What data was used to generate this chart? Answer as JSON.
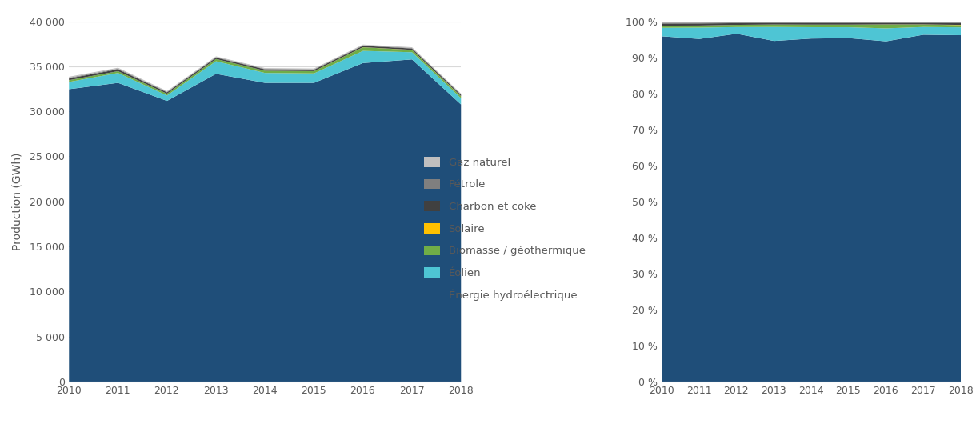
{
  "years": [
    2010,
    2011,
    2012,
    2013,
    2014,
    2015,
    2016,
    2017,
    2018
  ],
  "stack_order": [
    "Énergie hydroélectrique",
    "Éolien",
    "Biomasse / géothermique",
    "Solaire",
    "Charbon et coke",
    "Pétrole",
    "Gaz naturel"
  ],
  "legend_order": [
    "Gaz naturel",
    "Pétrole",
    "Charbon et coke",
    "Solaire",
    "Biomasse / géothermique",
    "Éolien",
    "Énergie hydroélectrique"
  ],
  "series": {
    "Gaz naturel": [
      100,
      100,
      80,
      80,
      80,
      80,
      80,
      80,
      80
    ],
    "Pétrole": [
      80,
      80,
      60,
      60,
      60,
      60,
      60,
      60,
      60
    ],
    "Charbon et coke": [
      200,
      200,
      150,
      150,
      150,
      150,
      150,
      150,
      150
    ],
    "Solaire": [
      0,
      0,
      0,
      0,
      0,
      5,
      10,
      15,
      20
    ],
    "Biomasse / géothermique": [
      200,
      200,
      200,
      250,
      250,
      250,
      400,
      250,
      200
    ],
    "Éolien": [
      800,
      1100,
      600,
      1400,
      1100,
      1050,
      1350,
      800,
      700
    ],
    "Énergie hydroélectrique": [
      32500,
      33200,
      31200,
      34200,
      33200,
      33200,
      35400,
      35800,
      30800
    ]
  },
  "colors": {
    "Gaz naturel": "#c0bfbf",
    "Pétrole": "#7f7f7f",
    "Charbon et coke": "#404040",
    "Solaire": "#ffc000",
    "Biomasse / géothermique": "#70ad47",
    "Éolien": "#4ec5d4",
    "Énergie hydroélectrique": "#1f4e79"
  },
  "ylabel_left": "Production (GWh)",
  "ylim_left": [
    0,
    40000
  ],
  "yticks_left": [
    0,
    5000,
    10000,
    15000,
    20000,
    25000,
    30000,
    35000,
    40000
  ],
  "ytick_labels_left": [
    "0",
    "5 000",
    "10 000",
    "15 000",
    "20 000",
    "25 000",
    "30 000",
    "35 000",
    "40 000"
  ],
  "ytick_labels_right": [
    "0 %",
    "10 %",
    "20 %",
    "30 %",
    "40 %",
    "50 %",
    "60 %",
    "70 %",
    "80 %",
    "90 %",
    "100 %"
  ],
  "background_color": "#ffffff",
  "grid_color": "#d9d9d9",
  "text_color": "#595959"
}
